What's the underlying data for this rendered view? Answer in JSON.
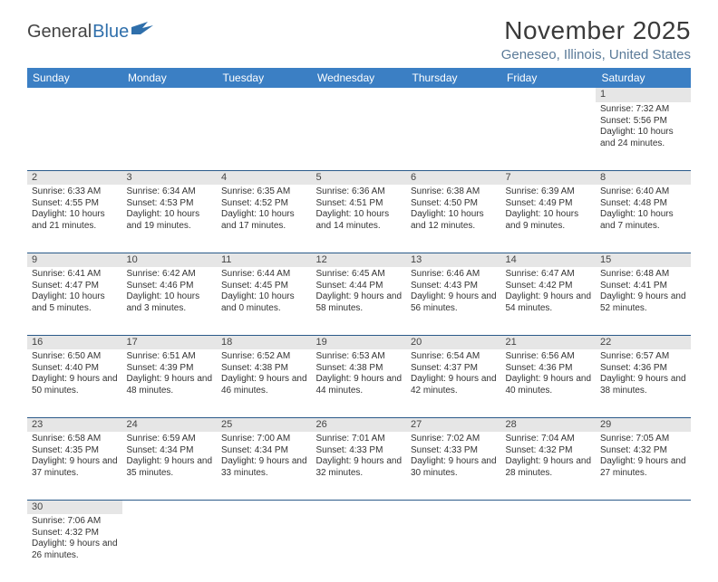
{
  "logo": {
    "text1": "General",
    "text2": "Blue"
  },
  "title": "November 2025",
  "location": "Geneseo, Illinois, United States",
  "colors": {
    "header_bg": "#3b7fc4",
    "header_text": "#ffffff",
    "daynum_bg": "#e6e6e6",
    "border": "#2a5a8a",
    "location_text": "#5a7a98",
    "body_text": "#333333"
  },
  "weekdays": [
    "Sunday",
    "Monday",
    "Tuesday",
    "Wednesday",
    "Thursday",
    "Friday",
    "Saturday"
  ],
  "labels": {
    "sunrise": "Sunrise:",
    "sunset": "Sunset:",
    "daylight": "Daylight:"
  },
  "weeks": [
    [
      null,
      null,
      null,
      null,
      null,
      null,
      {
        "n": "1",
        "sr": "7:32 AM",
        "ss": "5:56 PM",
        "dl": "10 hours and 24 minutes."
      }
    ],
    [
      {
        "n": "2",
        "sr": "6:33 AM",
        "ss": "4:55 PM",
        "dl": "10 hours and 21 minutes."
      },
      {
        "n": "3",
        "sr": "6:34 AM",
        "ss": "4:53 PM",
        "dl": "10 hours and 19 minutes."
      },
      {
        "n": "4",
        "sr": "6:35 AM",
        "ss": "4:52 PM",
        "dl": "10 hours and 17 minutes."
      },
      {
        "n": "5",
        "sr": "6:36 AM",
        "ss": "4:51 PM",
        "dl": "10 hours and 14 minutes."
      },
      {
        "n": "6",
        "sr": "6:38 AM",
        "ss": "4:50 PM",
        "dl": "10 hours and 12 minutes."
      },
      {
        "n": "7",
        "sr": "6:39 AM",
        "ss": "4:49 PM",
        "dl": "10 hours and 9 minutes."
      },
      {
        "n": "8",
        "sr": "6:40 AM",
        "ss": "4:48 PM",
        "dl": "10 hours and 7 minutes."
      }
    ],
    [
      {
        "n": "9",
        "sr": "6:41 AM",
        "ss": "4:47 PM",
        "dl": "10 hours and 5 minutes."
      },
      {
        "n": "10",
        "sr": "6:42 AM",
        "ss": "4:46 PM",
        "dl": "10 hours and 3 minutes."
      },
      {
        "n": "11",
        "sr": "6:44 AM",
        "ss": "4:45 PM",
        "dl": "10 hours and 0 minutes."
      },
      {
        "n": "12",
        "sr": "6:45 AM",
        "ss": "4:44 PM",
        "dl": "9 hours and 58 minutes."
      },
      {
        "n": "13",
        "sr": "6:46 AM",
        "ss": "4:43 PM",
        "dl": "9 hours and 56 minutes."
      },
      {
        "n": "14",
        "sr": "6:47 AM",
        "ss": "4:42 PM",
        "dl": "9 hours and 54 minutes."
      },
      {
        "n": "15",
        "sr": "6:48 AM",
        "ss": "4:41 PM",
        "dl": "9 hours and 52 minutes."
      }
    ],
    [
      {
        "n": "16",
        "sr": "6:50 AM",
        "ss": "4:40 PM",
        "dl": "9 hours and 50 minutes."
      },
      {
        "n": "17",
        "sr": "6:51 AM",
        "ss": "4:39 PM",
        "dl": "9 hours and 48 minutes."
      },
      {
        "n": "18",
        "sr": "6:52 AM",
        "ss": "4:38 PM",
        "dl": "9 hours and 46 minutes."
      },
      {
        "n": "19",
        "sr": "6:53 AM",
        "ss": "4:38 PM",
        "dl": "9 hours and 44 minutes."
      },
      {
        "n": "20",
        "sr": "6:54 AM",
        "ss": "4:37 PM",
        "dl": "9 hours and 42 minutes."
      },
      {
        "n": "21",
        "sr": "6:56 AM",
        "ss": "4:36 PM",
        "dl": "9 hours and 40 minutes."
      },
      {
        "n": "22",
        "sr": "6:57 AM",
        "ss": "4:36 PM",
        "dl": "9 hours and 38 minutes."
      }
    ],
    [
      {
        "n": "23",
        "sr": "6:58 AM",
        "ss": "4:35 PM",
        "dl": "9 hours and 37 minutes."
      },
      {
        "n": "24",
        "sr": "6:59 AM",
        "ss": "4:34 PM",
        "dl": "9 hours and 35 minutes."
      },
      {
        "n": "25",
        "sr": "7:00 AM",
        "ss": "4:34 PM",
        "dl": "9 hours and 33 minutes."
      },
      {
        "n": "26",
        "sr": "7:01 AM",
        "ss": "4:33 PM",
        "dl": "9 hours and 32 minutes."
      },
      {
        "n": "27",
        "sr": "7:02 AM",
        "ss": "4:33 PM",
        "dl": "9 hours and 30 minutes."
      },
      {
        "n": "28",
        "sr": "7:04 AM",
        "ss": "4:32 PM",
        "dl": "9 hours and 28 minutes."
      },
      {
        "n": "29",
        "sr": "7:05 AM",
        "ss": "4:32 PM",
        "dl": "9 hours and 27 minutes."
      }
    ],
    [
      {
        "n": "30",
        "sr": "7:06 AM",
        "ss": "4:32 PM",
        "dl": "9 hours and 26 minutes."
      },
      null,
      null,
      null,
      null,
      null,
      null
    ]
  ]
}
